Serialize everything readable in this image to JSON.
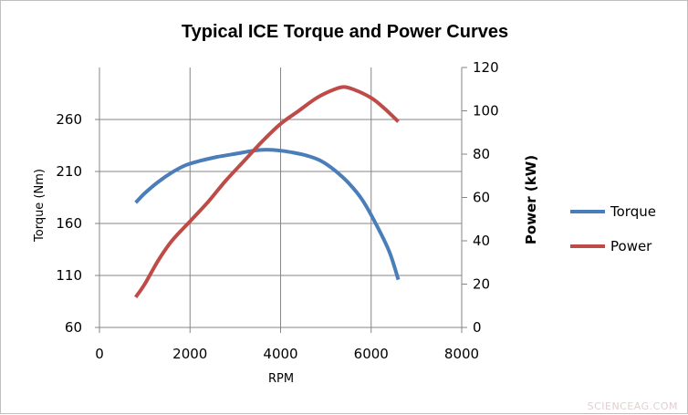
{
  "chart_data": {
    "type": "line",
    "title": "Typical ICE Torque and Power Curves",
    "xlabel": "RPM",
    "ylabel_left": "Torque (Nm)",
    "ylabel_right": "Power (kW)",
    "xlim": [
      0,
      8000
    ],
    "xticks": [
      0,
      2000,
      4000,
      6000,
      8000
    ],
    "ylim_left": [
      60,
      310
    ],
    "yticks_left": [
      60,
      110,
      160,
      210,
      260
    ],
    "ylim_right": [
      0,
      120
    ],
    "yticks_right": [
      0,
      20,
      40,
      60,
      80,
      100,
      120
    ],
    "grid": true,
    "legend_position": "right",
    "series": [
      {
        "name": "Torque",
        "axis": "left",
        "color": "#4a7ebb",
        "x": [
          800,
          1000,
          1300,
          1600,
          1900,
          2200,
          2600,
          3000,
          3400,
          3700,
          4000,
          4300,
          4600,
          4900,
          5200,
          5500,
          5800,
          6100,
          6400,
          6600
        ],
        "y": [
          180,
          189,
          200,
          209,
          216,
          220,
          224,
          227,
          230,
          231,
          230,
          228,
          225,
          220,
          211,
          199,
          183,
          160,
          133,
          106
        ]
      },
      {
        "name": "Power",
        "axis": "right",
        "color": "#be4b48",
        "x": [
          800,
          1000,
          1300,
          1600,
          2000,
          2400,
          2800,
          3200,
          3600,
          4000,
          4400,
          4800,
          5200,
          5400,
          5600,
          6000,
          6300,
          6600
        ],
        "y": [
          14,
          20,
          31,
          40,
          49,
          58,
          68,
          77,
          86,
          94,
          100,
          106,
          110,
          111,
          110,
          106,
          101,
          95
        ]
      }
    ]
  },
  "watermark": "SCIENCEAG.COM"
}
